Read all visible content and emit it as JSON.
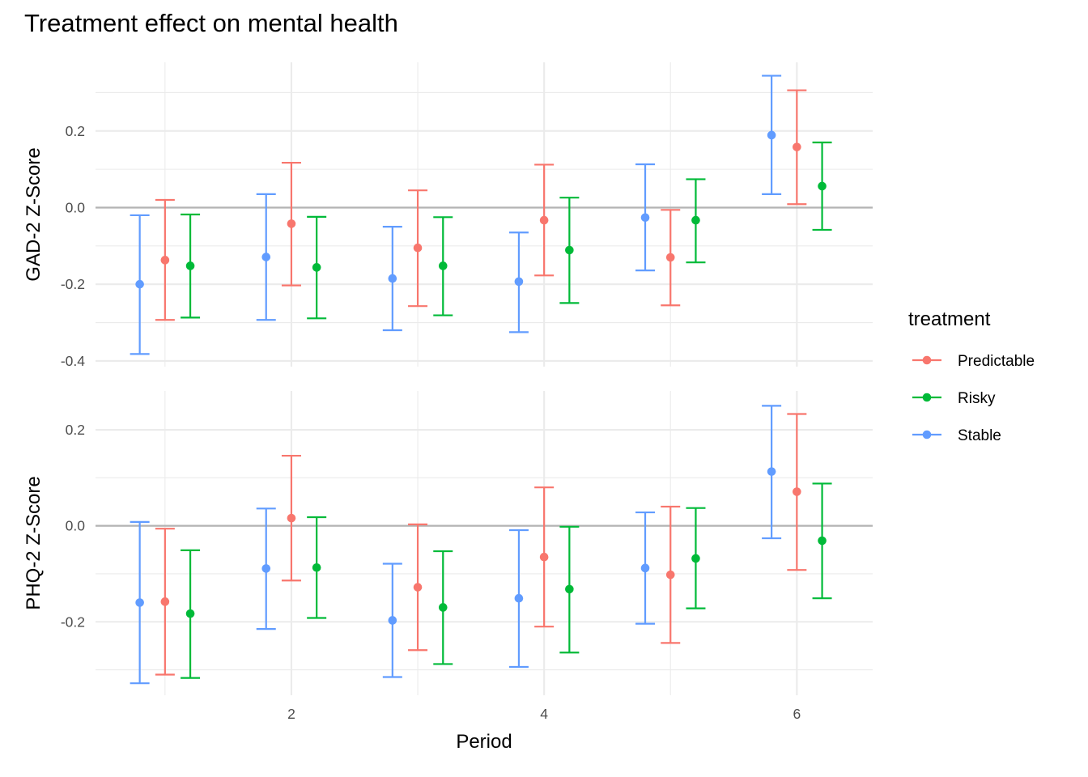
{
  "chart_data": {
    "type": "errorbar",
    "title": "Treatment effect on mental health",
    "xlabel": "Period",
    "x_ticks": [
      2,
      4,
      6
    ],
    "x_range": [
      0.45,
      6.6
    ],
    "periods": [
      1,
      2,
      3,
      4,
      5,
      6
    ],
    "dodge": 0.2,
    "legend": {
      "title": "treatment",
      "position": "right",
      "entries": [
        "Predictable",
        "Risky",
        "Stable"
      ]
    },
    "series_colors": {
      "Predictable": "#F8766D",
      "Risky": "#00BA38",
      "Stable": "#619CFF"
    },
    "series_offsets": {
      "Stable": -1,
      "Predictable": 0,
      "Risky": 1
    },
    "reference_line": 0,
    "panels": [
      {
        "id": "gad2",
        "ylabel": "GAD-2 Z-Score",
        "ylim": [
          -0.415,
          0.379
        ],
        "y_ticks": [
          -0.4,
          -0.2,
          0.0,
          0.2
        ],
        "y_tick_labels": [
          "-0.4",
          "-0.2",
          "0.0",
          "0.2"
        ],
        "y_minor": [
          -0.3,
          -0.1,
          0.1,
          0.3
        ],
        "series": [
          {
            "name": "Stable",
            "estimate": [
              -0.2,
              -0.129,
              -0.185,
              -0.193,
              -0.026,
              0.189
            ],
            "lower": [
              -0.382,
              -0.293,
              -0.32,
              -0.325,
              -0.164,
              0.035
            ],
            "upper": [
              -0.02,
              0.035,
              -0.05,
              -0.065,
              0.113,
              0.344
            ]
          },
          {
            "name": "Predictable",
            "estimate": [
              -0.137,
              -0.042,
              -0.105,
              -0.033,
              -0.13,
              0.158
            ],
            "lower": [
              -0.293,
              -0.203,
              -0.257,
              -0.177,
              -0.255,
              0.009
            ],
            "upper": [
              0.02,
              0.117,
              0.045,
              0.112,
              -0.006,
              0.306
            ]
          },
          {
            "name": "Risky",
            "estimate": [
              -0.152,
              -0.156,
              -0.152,
              -0.111,
              -0.033,
              0.056
            ],
            "lower": [
              -0.287,
              -0.289,
              -0.281,
              -0.249,
              -0.143,
              -0.058
            ],
            "upper": [
              -0.018,
              -0.024,
              -0.025,
              0.026,
              0.074,
              0.17
            ]
          }
        ]
      },
      {
        "id": "phq2",
        "ylabel": "PHQ-2 Z-Score",
        "ylim": [
          -0.353,
          0.281
        ],
        "y_ticks": [
          -0.2,
          0.0,
          0.2
        ],
        "y_tick_labels": [
          "-0.2",
          "0.0",
          "0.2"
        ],
        "y_minor": [
          -0.3,
          -0.1,
          0.1
        ],
        "series": [
          {
            "name": "Stable",
            "estimate": [
              -0.16,
              -0.089,
              -0.197,
              -0.151,
              -0.088,
              0.113
            ],
            "lower": [
              -0.328,
              -0.215,
              -0.315,
              -0.294,
              -0.204,
              -0.026
            ],
            "upper": [
              0.008,
              0.036,
              -0.079,
              -0.009,
              0.028,
              0.25
            ]
          },
          {
            "name": "Predictable",
            "estimate": [
              -0.158,
              0.016,
              -0.128,
              -0.065,
              -0.102,
              0.071
            ],
            "lower": [
              -0.31,
              -0.114,
              -0.259,
              -0.21,
              -0.244,
              -0.092
            ],
            "upper": [
              -0.006,
              0.146,
              0.003,
              0.08,
              0.04,
              0.233
            ]
          },
          {
            "name": "Risky",
            "estimate": [
              -0.183,
              -0.087,
              -0.17,
              -0.132,
              -0.068,
              -0.031
            ],
            "lower": [
              -0.317,
              -0.192,
              -0.288,
              -0.264,
              -0.172,
              -0.151
            ],
            "upper": [
              -0.051,
              0.018,
              -0.053,
              -0.002,
              0.037,
              0.088
            ]
          }
        ]
      }
    ]
  }
}
